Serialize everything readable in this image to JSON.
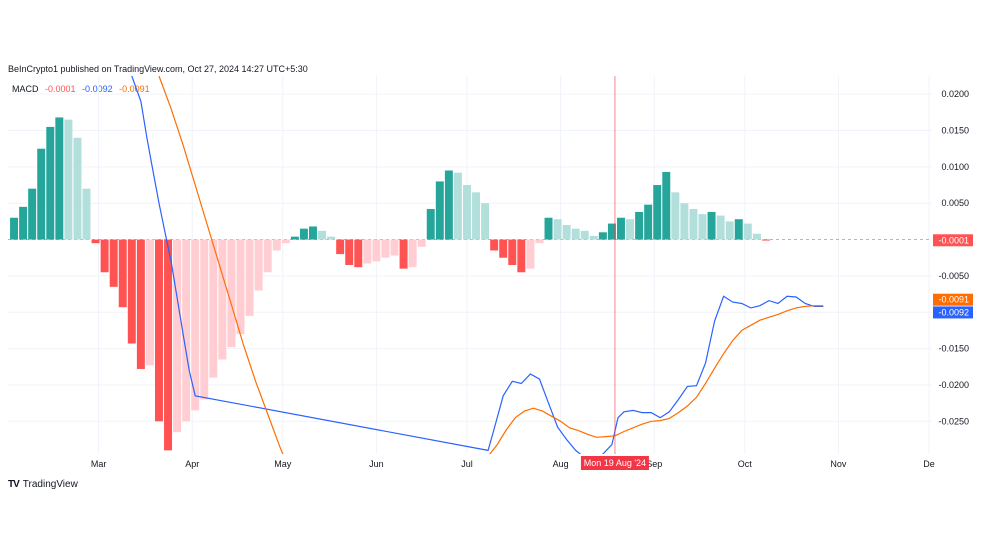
{
  "header": {
    "publisher": "BeInCrypto1 published on TradingView.com, Oct 27, 2024 14:27 UTC+5:30"
  },
  "legend": {
    "name": "MACD",
    "hist": "-0.0001",
    "macd": "-0.0092",
    "signal": "-0.0091"
  },
  "footer": {
    "logo": "TV",
    "brand": "TradingView"
  },
  "colors": {
    "hist_up_strong": "#26a69a",
    "hist_up_weak": "#b2dfdb",
    "hist_down_strong": "#ff5252",
    "hist_down_weak": "#ffcdd2",
    "macd": "#2962ff",
    "signal": "#ff6d00",
    "crosshair": "#f23645"
  },
  "chart_data": {
    "type": "bar",
    "ylim": [
      -0.0295,
      0.0225
    ],
    "yticks": [
      0.02,
      0.015,
      0.01,
      0.005,
      -0.005,
      -0.01,
      -0.015,
      -0.02,
      -0.025
    ],
    "ytick_labels": [
      "0.0200",
      "0.0150",
      "0.0100",
      "0.0050",
      "-0.0050",
      "-0.0100",
      "-0.0150",
      "-0.0200",
      "-0.0250"
    ],
    "xlim": [
      -30,
      276
    ],
    "months": [
      {
        "label": "Mar",
        "day": 0
      },
      {
        "label": "Apr",
        "day": 31
      },
      {
        "label": "May",
        "day": 61
      },
      {
        "label": "Jun",
        "day": 92
      },
      {
        "label": "Jul",
        "day": 122
      },
      {
        "label": "Aug",
        "day": 153
      },
      {
        "label": "Sep",
        "day": 184
      },
      {
        "label": "Oct",
        "day": 214
      },
      {
        "label": "Nov",
        "day": 245
      },
      {
        "label": "De",
        "day": 275
      }
    ],
    "crosshair": {
      "day": 171,
      "label": "Mon 19 Aug '24"
    },
    "last_values": {
      "hist": "-0.0001",
      "signal": "-0.0091",
      "macd": "-0.0092"
    },
    "histogram": {
      "start_day": -28,
      "step_days": 3,
      "values": [
        0.003,
        0.0045,
        0.007,
        0.0125,
        0.0155,
        0.0168,
        0.0165,
        0.014,
        0.007,
        -0.0005,
        -0.0045,
        -0.0065,
        -0.0093,
        -0.0143,
        -0.0178,
        -0.0173,
        -0.025,
        -0.029,
        -0.0265,
        -0.025,
        -0.0235,
        -0.022,
        -0.019,
        -0.0165,
        -0.0148,
        -0.013,
        -0.0105,
        -0.007,
        -0.0045,
        -0.0015,
        -0.0005,
        0.0004,
        0.0015,
        0.0018,
        0.0012,
        0.0004,
        -0.002,
        -0.0035,
        -0.0038,
        -0.0033,
        -0.003,
        -0.0025,
        -0.0022,
        -0.004,
        -0.0038,
        -0.001,
        0.0042,
        0.008,
        0.0095,
        0.0092,
        0.0075,
        0.0065,
        0.005,
        -0.0015,
        -0.0025,
        -0.0035,
        -0.0045,
        -0.004,
        -0.0005,
        0.003,
        0.0028,
        0.002,
        0.0015,
        0.0012,
        0.0005,
        0.001,
        0.0022,
        0.003,
        0.0028,
        0.0038,
        0.0048,
        0.0075,
        0.0093,
        0.0065,
        0.005,
        0.0042,
        0.0035,
        0.0038,
        0.0033,
        0.0025,
        0.0028,
        0.0022,
        0.0008,
        -0.0001
      ]
    },
    "series": [
      {
        "key": "macd",
        "x": [
          11,
          14,
          16,
          18,
          20,
          22,
          24,
          26,
          28,
          30,
          32,
          129,
          131,
          134,
          137,
          140,
          143,
          146,
          149,
          152,
          155,
          158,
          161,
          164,
          167,
          170,
          172,
          174,
          177,
          180,
          183,
          186,
          189,
          192,
          195,
          198,
          201,
          204,
          207,
          210,
          213,
          216,
          219,
          222,
          225,
          228,
          231,
          234,
          237,
          240
        ],
        "values": [
          0.0225,
          0.019,
          0.014,
          0.0095,
          0.005,
          0.001,
          -0.003,
          -0.008,
          -0.013,
          -0.018,
          -0.0215,
          -0.029,
          -0.026,
          -0.0215,
          -0.0195,
          -0.0198,
          -0.0185,
          -0.0192,
          -0.0225,
          -0.0258,
          -0.0275,
          -0.029,
          -0.03,
          -0.0305,
          -0.0295,
          -0.0282,
          -0.0245,
          -0.0237,
          -0.0235,
          -0.0238,
          -0.0238,
          -0.0245,
          -0.0237,
          -0.022,
          -0.0202,
          -0.0201,
          -0.017,
          -0.0112,
          -0.0078,
          -0.0086,
          -0.0088,
          -0.0094,
          -0.0091,
          -0.0084,
          -0.0088,
          -0.0078,
          -0.0079,
          -0.0088,
          -0.0092,
          -0.0092
        ]
      },
      {
        "key": "signal",
        "x": [
          20,
          24,
          28,
          32,
          36,
          40,
          44,
          48,
          52,
          56,
          60,
          62,
          129,
          132,
          135,
          138,
          141,
          144,
          147,
          150,
          153,
          156,
          159,
          162,
          165,
          168,
          171,
          174,
          177,
          180,
          183,
          186,
          189,
          192,
          195,
          198,
          201,
          204,
          207,
          210,
          213,
          216,
          219,
          222,
          225,
          228,
          231,
          234,
          237,
          240
        ],
        "values": [
          0.0225,
          0.018,
          0.013,
          0.0075,
          0.002,
          -0.0035,
          -0.009,
          -0.0145,
          -0.0195,
          -0.024,
          -0.0285,
          -0.0305,
          -0.0298,
          -0.0282,
          -0.0262,
          -0.0245,
          -0.0236,
          -0.0232,
          -0.0236,
          -0.0243,
          -0.025,
          -0.0259,
          -0.0263,
          -0.0268,
          -0.0272,
          -0.0271,
          -0.027,
          -0.0264,
          -0.0259,
          -0.0254,
          -0.025,
          -0.0249,
          -0.0246,
          -0.0238,
          -0.0229,
          -0.0217,
          -0.0198,
          -0.0177,
          -0.0157,
          -0.0139,
          -0.0125,
          -0.0118,
          -0.0111,
          -0.0107,
          -0.0103,
          -0.0098,
          -0.0094,
          -0.0092,
          -0.0091,
          -0.0091
        ]
      }
    ]
  }
}
